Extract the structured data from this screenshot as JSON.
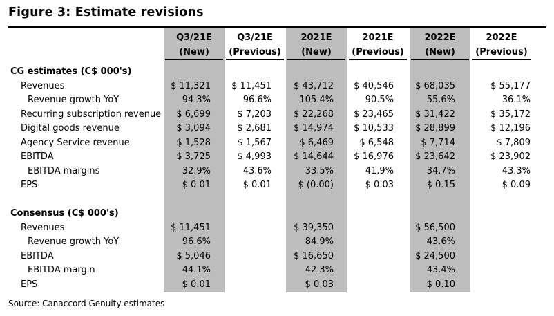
{
  "title": "Figure 3: Estimate revisions",
  "columns": [
    {
      "line1": "Q3/21E",
      "line2": "(New)",
      "shaded": true
    },
    {
      "line1": "Q3/21E",
      "line2": "(Previous)",
      "shaded": false
    },
    {
      "line1": "2021E",
      "line2": "(New)",
      "shaded": true
    },
    {
      "line1": "2021E",
      "line2": "(Previous)",
      "shaded": false
    },
    {
      "line1": "2022E",
      "line2": "(New)",
      "shaded": true
    },
    {
      "line1": "2022E",
      "line2": "(Previous)",
      "shaded": false
    }
  ],
  "cg_section": {
    "heading": "CG estimates (C$ 000's)",
    "rows": [
      {
        "label": "Revenues",
        "indent": 1,
        "values": [
          "$ 11,321",
          "$ 11,451",
          "$ 43,712",
          "$ 40,546",
          "$ 68,035",
          "$ 55,177"
        ]
      },
      {
        "label": "Revenue growth YoY",
        "indent": 2,
        "values": [
          "94.3%",
          "96.6%",
          "105.4%",
          "90.5%",
          "55.6%",
          "36.1%"
        ]
      },
      {
        "label": "Recurring subscription revenue (A",
        "indent": 1,
        "values": [
          "$ 6,699",
          "$ 7,203",
          "$ 22,268",
          "$ 23,465",
          "$ 31,422",
          "$ 35,172"
        ]
      },
      {
        "label": "Digital goods revenue",
        "indent": 1,
        "values": [
          "$ 3,094",
          "$ 2,681",
          "$ 14,974",
          "$ 10,533",
          "$ 28,899",
          "$ 12,196"
        ]
      },
      {
        "label": "Agency Service revenue",
        "indent": 1,
        "values": [
          "$ 1,528",
          "$ 1,567",
          "$ 6,469",
          "$ 6,548",
          "$ 7,714",
          "$ 7,809"
        ]
      },
      {
        "label": "EBITDA",
        "indent": 1,
        "values": [
          "$ 3,725",
          "$ 4,993",
          "$ 14,644",
          "$ 16,976",
          "$ 23,642",
          "$ 23,902"
        ]
      },
      {
        "label": "EBITDA margins",
        "indent": 2,
        "values": [
          "32.9%",
          "43.6%",
          "33.5%",
          "41.9%",
          "34.7%",
          "43.3%"
        ]
      },
      {
        "label": "EPS",
        "indent": 1,
        "values": [
          "$ 0.01",
          "$ 0.01",
          "$ (0.00)",
          "$ 0.03",
          "$ 0.15",
          "$ 0.09"
        ]
      }
    ]
  },
  "consensus_section": {
    "heading": "Consensus (C$ 000's)",
    "rows": [
      {
        "label": "Revenues",
        "indent": 1,
        "values": [
          "$ 11,451",
          "",
          "$ 39,350",
          "",
          "$ 56,500",
          ""
        ]
      },
      {
        "label": "Revenue growth YoY",
        "indent": 2,
        "values": [
          "96.6%",
          "",
          "84.9%",
          "",
          "43.6%",
          ""
        ]
      },
      {
        "label": "EBITDA",
        "indent": 1,
        "values": [
          "$ 5,046",
          "",
          "$ 16,650",
          "",
          "$ 24,500",
          ""
        ]
      },
      {
        "label": "EBITDA margin",
        "indent": 2,
        "values": [
          "44.1%",
          "",
          "42.3%",
          "",
          "43.4%",
          ""
        ]
      },
      {
        "label": "EPS",
        "indent": 1,
        "values": [
          "$ 0.01",
          "",
          "$ 0.03",
          "",
          "$ 0.10",
          ""
        ]
      }
    ]
  },
  "source": "Source: Canaccord Genuity estimates",
  "colors": {
    "shade": "#bdbdbd"
  }
}
